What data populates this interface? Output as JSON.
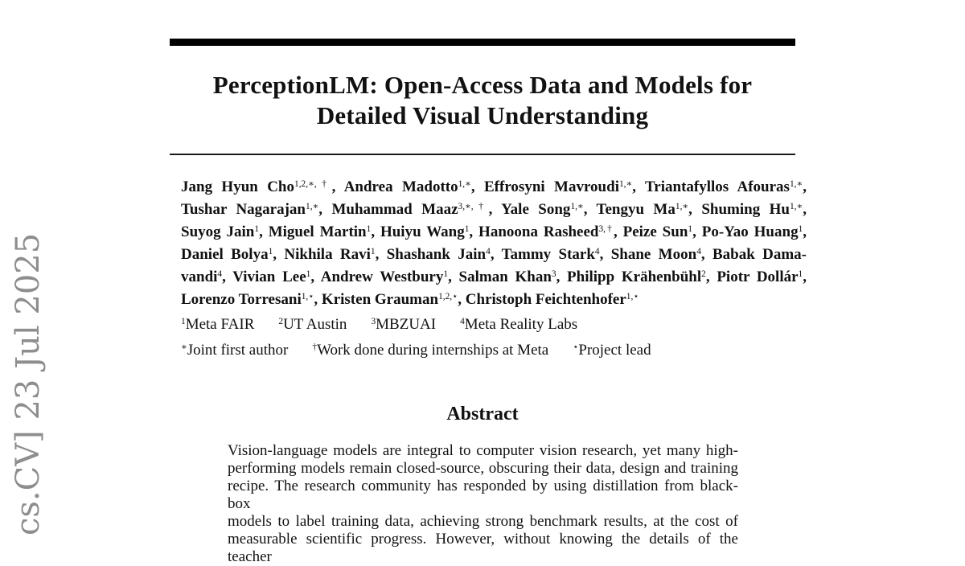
{
  "page": {
    "background": "#ffffff",
    "text_color": "#111111",
    "rule_color": "#000000"
  },
  "watermark": {
    "text": "cs.CV] 23 Jul 2025",
    "color": "#8e8e8e"
  },
  "title": {
    "line1": "PerceptionLM: Open-Access Data and Models for",
    "line2": "Detailed Visual Understanding"
  },
  "authors": {
    "lines": [
      [
        {
          "t": "Jang Hyun Cho"
        },
        {
          "s": "1,2,∗,†"
        },
        {
          "t": ", Andrea Madotto"
        },
        {
          "s": "1,∗"
        },
        {
          "t": ", Effrosyni Mavroudi"
        },
        {
          "s": "1,∗"
        },
        {
          "t": ", Triantafyllos Afouras"
        },
        {
          "s": "1,∗"
        },
        {
          "t": ","
        }
      ],
      [
        {
          "t": "Tushar Nagarajan"
        },
        {
          "s": "1,∗"
        },
        {
          "t": ", Muhammad Maaz"
        },
        {
          "s": "3,∗,†"
        },
        {
          "t": ", Yale Song"
        },
        {
          "s": "1,∗"
        },
        {
          "t": ", Tengyu Ma"
        },
        {
          "s": "1,∗"
        },
        {
          "t": ", Shuming Hu"
        },
        {
          "s": "1,∗"
        },
        {
          "t": ","
        }
      ],
      [
        {
          "t": "Suyog Jain"
        },
        {
          "s": "1"
        },
        {
          "t": ", Miguel Martin"
        },
        {
          "s": "1"
        },
        {
          "t": ", Huiyu Wang"
        },
        {
          "s": "1"
        },
        {
          "t": ", Hanoona Rasheed"
        },
        {
          "s": "3,†"
        },
        {
          "t": ", Peize Sun"
        },
        {
          "s": "1"
        },
        {
          "t": ", Po-Yao Huang"
        },
        {
          "s": "1"
        },
        {
          "t": ","
        }
      ],
      [
        {
          "t": "Daniel Bolya"
        },
        {
          "s": "1"
        },
        {
          "t": ", Nikhila Ravi"
        },
        {
          "s": "1"
        },
        {
          "t": ", Shashank Jain"
        },
        {
          "s": "4"
        },
        {
          "t": ", Tammy Stark"
        },
        {
          "s": "4"
        },
        {
          "t": ", Shane Moon"
        },
        {
          "s": "4"
        },
        {
          "t": ", Babak Dama-"
        }
      ],
      [
        {
          "t": "vandi"
        },
        {
          "s": "4"
        },
        {
          "t": ", Vivian Lee"
        },
        {
          "s": "1"
        },
        {
          "t": ", Andrew Westbury"
        },
        {
          "s": "1"
        },
        {
          "t": ", Salman Khan"
        },
        {
          "s": "3"
        },
        {
          "t": ", Philipp Krähenbühl"
        },
        {
          "s": "2"
        },
        {
          "t": ", Piotr Dollár"
        },
        {
          "s": "1"
        },
        {
          "t": ","
        }
      ],
      [
        {
          "t": "Lorenzo Torresani"
        },
        {
          "s": "1,⋆"
        },
        {
          "t": ", Kristen Grauman"
        },
        {
          "s": "1,2,⋆"
        },
        {
          "t": ", Christoph Feichtenhofer"
        },
        {
          "s": "1,⋆"
        }
      ]
    ]
  },
  "affiliations": {
    "segments": [
      {
        "s": "1"
      },
      {
        "t": "Meta FAIR"
      },
      {
        "g": true
      },
      {
        "s": "2"
      },
      {
        "t": "UT Austin"
      },
      {
        "g": true
      },
      {
        "s": "3"
      },
      {
        "t": "MBZUAI"
      },
      {
        "g": true
      },
      {
        "s": "4"
      },
      {
        "t": "Meta Reality Labs"
      }
    ]
  },
  "footnotes": {
    "segments": [
      {
        "s": "∗"
      },
      {
        "t": "Joint first author"
      },
      {
        "g": true
      },
      {
        "s": "†"
      },
      {
        "t": "Work done during internships at Meta"
      },
      {
        "g": true
      },
      {
        "s": "⋆"
      },
      {
        "t": "Project lead"
      }
    ]
  },
  "abstract": {
    "heading": "Abstract",
    "lines": [
      "Vision-language models are integral to computer vision research, yet many high-",
      "performing models remain closed-source, obscuring their data, design and training",
      "recipe. The research community has responded by using distillation from black-box",
      "models to label training data, achieving strong benchmark results, at the cost of",
      "measurable scientific progress. However, without knowing the details of the teacher"
    ]
  }
}
